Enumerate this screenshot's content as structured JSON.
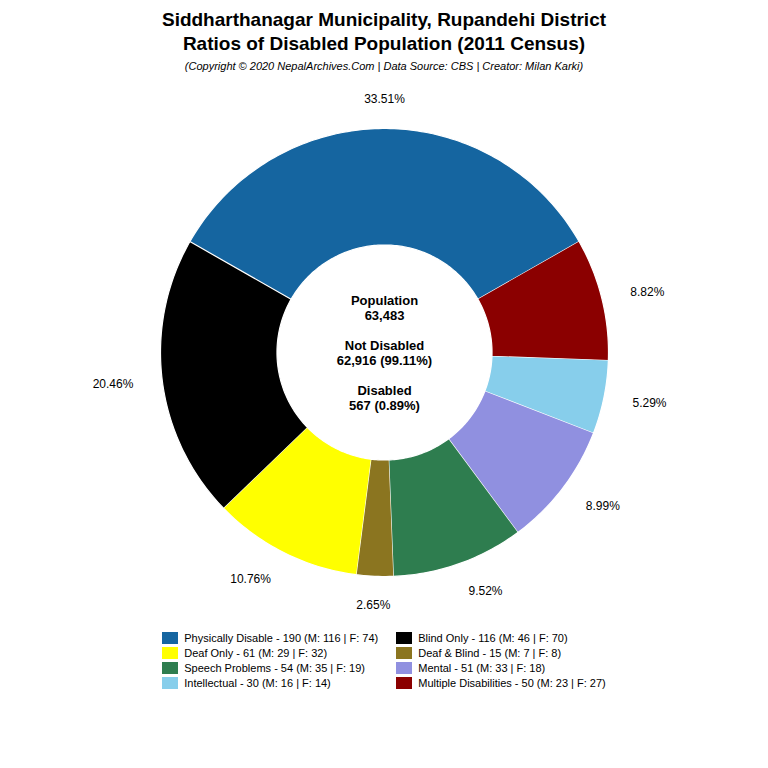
{
  "chart_data": {
    "type": "pie",
    "title": [
      "Siddharthanagar Municipality, Rupandehi District",
      "Ratios of Disabled Population (2011 Census)"
    ],
    "subtitle": "(Copyright © 2020 NepalArchives.Com | Data Source: CBS | Creator: Milan Karki)",
    "values": [
      33.51,
      8.82,
      5.29,
      8.99,
      9.52,
      2.65,
      10.76,
      20.46
    ],
    "value_labels": [
      "33.51%",
      "8.82%",
      "5.29%",
      "8.99%",
      "9.52%",
      "2.65%",
      "10.76%",
      "20.46%"
    ],
    "colors": [
      "#1565a0",
      "#8b0000",
      "#87ceeb",
      "#9090e0",
      "#2e7d4f",
      "#8b7520",
      "#ffff00",
      "#000000"
    ],
    "data_labels": true,
    "legend": "bottom",
    "legend_items": [
      {
        "label": "Physically Disable - 190 (M: 116 | F: 74)",
        "color": "#1565a0"
      },
      {
        "label": "Deaf Only - 61 (M: 29 | F: 32)",
        "color": "#ffff00"
      },
      {
        "label": "Speech Problems - 54 (M: 35 | F: 19)",
        "color": "#2e7d4f"
      },
      {
        "label": "Intellectual - 30 (M: 16 | F: 14)",
        "color": "#87ceeb"
      },
      {
        "label": "Blind Only - 116 (M: 46 | F: 70)",
        "color": "#000000"
      },
      {
        "label": "Deaf & Blind - 15 (M: 7 | F: 8)",
        "color": "#8b7520"
      },
      {
        "label": "Mental - 51 (M: 33 | F: 18)",
        "color": "#9090e0"
      },
      {
        "label": "Multiple Disabilities - 50 (M: 23 | F: 27)",
        "color": "#8b0000"
      }
    ],
    "annotations": [
      [
        "Population",
        "63,483"
      ],
      [
        "Not Disabled",
        "62,916 (99.11%)"
      ],
      [
        "Disabled",
        "567 (0.89%)"
      ]
    ]
  }
}
